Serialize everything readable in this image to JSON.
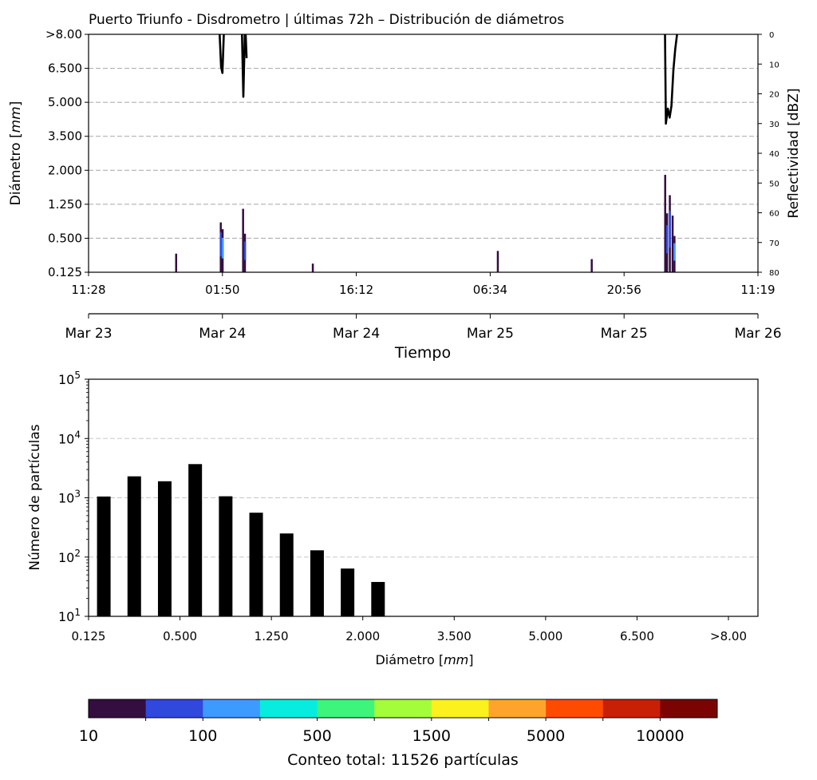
{
  "colors": {
    "grid": "#b0b0b0",
    "bar": "#000000",
    "reflectivity_line": "#000000",
    "palette": [
      "#330e3f",
      "#3148dc",
      "#3d9bff",
      "#08ecdf",
      "#3df57a",
      "#a3fd3b",
      "#fbf11e",
      "#fea42d",
      "#fe4b02",
      "#c82004",
      "#7b0403"
    ]
  },
  "chart_data": [
    {
      "type": "heatmap",
      "title": "Puerto Triunfo - Disdrometro | últimas 72h – Distribución de diámetros",
      "ylabel": "Diámetro [mm]",
      "ylabel_prefix": "Diámetro [",
      "ylabel_unit": "mm",
      "ylabel_suffix": "]",
      "y2label": "Reflectividad [dBZ]",
      "xlabel": "Tiempo",
      "y_ticks": [
        "0.125",
        "0.500",
        "1.250",
        "2.000",
        "3.500",
        "5.000",
        "6.500",
        ">8.00"
      ],
      "y2_ticks": [
        "0",
        "10",
        "20",
        "30",
        "40",
        "50",
        "60",
        "70",
        "80"
      ],
      "y2_range": [
        0,
        80
      ],
      "time_range_hours": [
        0,
        72
      ],
      "time_ticks": [
        "11:28",
        "01:50",
        "16:12",
        "06:34",
        "20:56",
        "11:19"
      ],
      "date_ticks": [
        "Mar 23",
        "Mar 24",
        "Mar 24",
        "Mar 25",
        "Mar 25",
        "Mar 26"
      ],
      "rain_events": [
        {
          "t": 9.4,
          "d_max": 0.33,
          "level": 0
        },
        {
          "t": 14.2,
          "d_max": 0.85,
          "level": 1
        },
        {
          "t": 14.4,
          "d_max": 0.7,
          "level": 2
        },
        {
          "t": 16.6,
          "d_max": 1.15,
          "level": 0
        },
        {
          "t": 16.8,
          "d_max": 0.6,
          "level": 1
        },
        {
          "t": 24.1,
          "d_max": 0.22,
          "level": 0
        },
        {
          "t": 44.0,
          "d_max": 0.36,
          "level": 0
        },
        {
          "t": 54.1,
          "d_max": 0.27,
          "level": 0
        },
        {
          "t": 62.0,
          "d_max": 1.9,
          "level": 0
        },
        {
          "t": 62.2,
          "d_max": 1.05,
          "level": 1
        },
        {
          "t": 62.5,
          "d_max": 1.45,
          "level": 1
        },
        {
          "t": 62.8,
          "d_max": 1.0,
          "level": 0
        },
        {
          "t": 63.0,
          "d_max": 0.55,
          "level": 2
        }
      ],
      "reflectivity_segments": [
        {
          "t": [
            14.1,
            14.25,
            14.4,
            14.55
          ],
          "dbz": [
            0,
            11,
            13,
            0
          ]
        },
        {
          "t": [
            16.5,
            16.65,
            16.8
          ],
          "dbz": [
            0,
            21,
            0
          ]
        },
        {
          "t": [
            16.9,
            17.0
          ],
          "dbz": [
            0,
            8
          ]
        },
        {
          "t": [
            62.0,
            62.1,
            62.3,
            62.5,
            62.7,
            62.9,
            63.1,
            63.3
          ],
          "dbz": [
            0,
            30,
            25,
            28,
            24,
            12,
            5,
            0
          ]
        }
      ]
    },
    {
      "type": "bar",
      "ylabel": "Número de partículas",
      "xlabel": "Diámetro [mm]",
      "xlabel_prefix": "Diámetro [",
      "xlabel_unit": "mm",
      "xlabel_suffix": "]",
      "scale": "log",
      "ylim": [
        10,
        100000
      ],
      "y_tick_base": "10",
      "y_tick_exponents": [
        "1",
        "2",
        "3",
        "4",
        "5"
      ],
      "x_tick_labels": [
        "0.125",
        "0.500",
        "1.250",
        "2.000",
        "3.500",
        "5.000",
        "6.500",
        ">8.00"
      ],
      "bin_count": 22,
      "bins": [
        0,
        1,
        2,
        3,
        4,
        5,
        6,
        7,
        8,
        9
      ],
      "values": [
        1050,
        2300,
        1900,
        3700,
        1060,
        560,
        250,
        130,
        64,
        38
      ]
    },
    {
      "type": "colorbar",
      "tick_labels": [
        "10",
        "100",
        "500",
        "1500",
        "5000",
        "10000"
      ],
      "label": "Conteo total: 11526 partículas"
    }
  ]
}
